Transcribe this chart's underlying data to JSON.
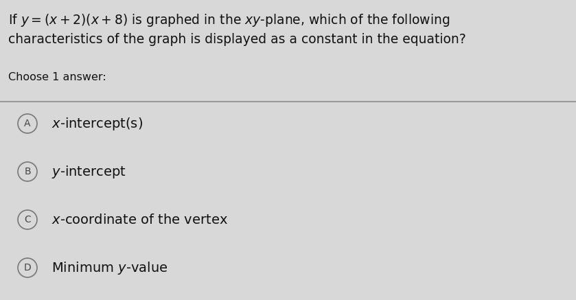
{
  "background_color": "#d8d8d8",
  "question_line1": "If $y = (x + 2)(x + 8)$ is graphed in the $xy$-plane, which of the following",
  "question_line2": "characteristics of the graph is displayed as a constant in the equation?",
  "choose_text": "Choose 1 answer:",
  "labels": [
    "A",
    "B",
    "C",
    "D"
  ],
  "option_texts": [
    "$x$-intercept(s)",
    "$y$-intercept",
    "$x$-coordinate of the vertex",
    "Minimum $y$-value"
  ],
  "divider_color": "#999999",
  "circle_edge_color": "#777777",
  "circle_face_color": "#d8d8d8",
  "text_color": "#111111",
  "label_color": "#444444",
  "question_fontsize": 13.5,
  "choose_fontsize": 11.5,
  "option_fontsize": 14,
  "label_fontsize": 10,
  "figwidth": 8.39,
  "figheight": 4.37,
  "dpi": 100
}
